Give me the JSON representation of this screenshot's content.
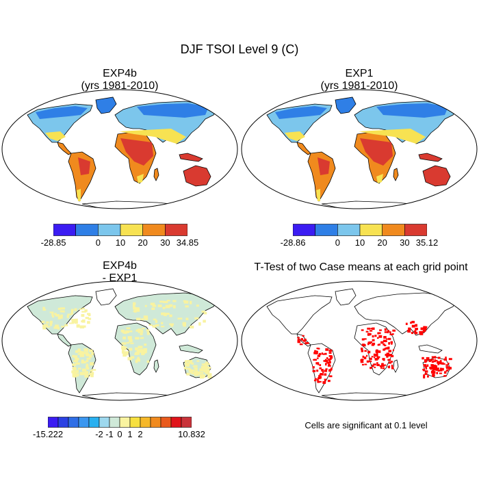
{
  "title": "DJF TSOI Level 9 (C)",
  "panels": [
    {
      "id": "exp4b",
      "title_line1": "EXP4b",
      "title_line2": "(yrs 1981-2010)"
    },
    {
      "id": "exp1",
      "title_line1": "EXP1",
      "title_line2": "(yrs 1981-2010)"
    },
    {
      "id": "diff",
      "title_line1": "EXP4b",
      "title_line2": " - EXP1"
    },
    {
      "id": "ttest",
      "title_line1": "T-Test of two Case means at each grid point",
      "title_line2": ""
    }
  ],
  "colorbars": {
    "exp4b": {
      "colors": [
        "#3b1cf2",
        "#2f7fe6",
        "#7cc6ec",
        "#f7e252",
        "#f08a1e",
        "#d93a30"
      ],
      "labels": [
        "-28.85",
        "0",
        "10",
        "20",
        "30",
        "34.85"
      ]
    },
    "exp1": {
      "colors": [
        "#3b1cf2",
        "#2f7fe6",
        "#7cc6ec",
        "#f7e252",
        "#f08a1e",
        "#d93a30"
      ],
      "labels": [
        "-28.86",
        "0",
        "10",
        "20",
        "30",
        "35.12"
      ]
    },
    "diff": {
      "colors": [
        "#3b1cf2",
        "#2b41e3",
        "#2f6ee6",
        "#3b97f0",
        "#29b0f0",
        "#9dd8ee",
        "#cfe9d8",
        "#f9f3a0",
        "#f7e040",
        "#f6b82a",
        "#f08a1e",
        "#e95a1c",
        "#e0141a",
        "#c9333a"
      ],
      "labels": [
        "-15.222",
        "-2",
        "-1",
        "0",
        "1",
        "2",
        "10.832"
      ]
    }
  },
  "significance_note": "Cells are significant at 0.1 level",
  "colors": {
    "cold": "#2f7fe6",
    "cool": "#7cc6ec",
    "mild": "#f7e252",
    "warm": "#f08a1e",
    "hot": "#d93a30",
    "diff_base": "#cfe9d8",
    "diff_pos": "#f9f3a0",
    "significant": "#ff0000"
  }
}
